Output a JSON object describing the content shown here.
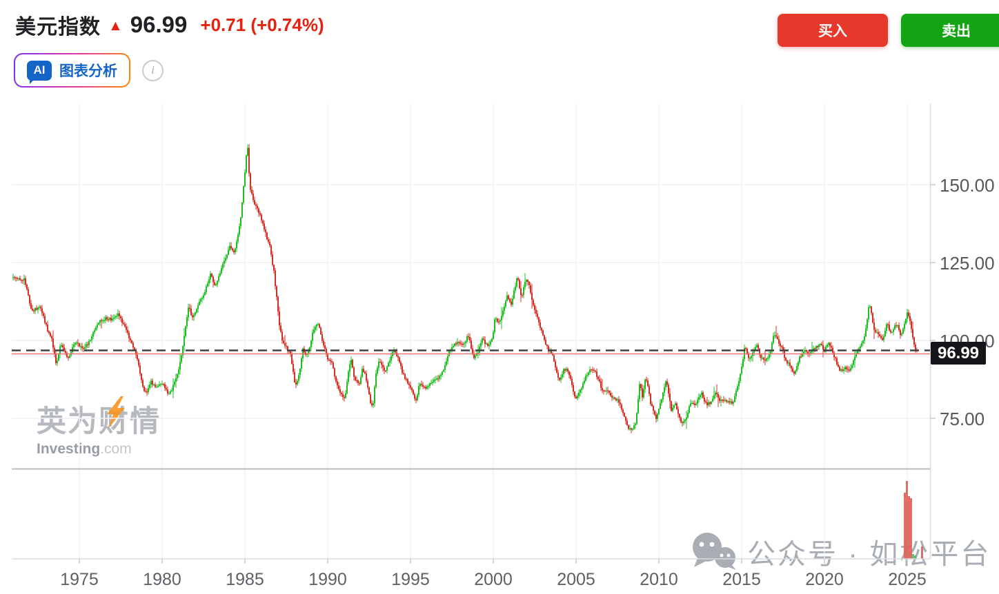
{
  "header": {
    "title": "美元指数",
    "arrow": "▲",
    "last_price": "96.99",
    "change_text": "+0.71 (+0.74%)",
    "ai_button": {
      "badge": "AI",
      "label": "图表分析"
    },
    "info_icon": "i",
    "buy_label": "买入",
    "sell_label": "卖出"
  },
  "price_badge": "96.99",
  "watermarks": {
    "investing_cn": "英为财情",
    "investing_en": "Investing",
    "investing_domain": ".com",
    "channel_text": "公众号 · 如松平台"
  },
  "colors": {
    "candle_up": "#21bb24",
    "candle_down": "#ce3226",
    "volume_down": "#de5e55",
    "volume_up": "#57b56b",
    "grid": "#f0f1f3",
    "separator": "#b7bbc1",
    "axis_line": "#d8dbde",
    "tick": "#c6cacd",
    "dashed_line": "#3c4045",
    "price_line": "#f5746d",
    "accent_red": "#e4220f",
    "buy_red": "#e6392b",
    "sell_green": "#13a413",
    "ai_blue": "#1565c8",
    "badge_bg": "#141619"
  },
  "chart_data": {
    "type": "candlestick",
    "title": "美元指数",
    "current_price": 96.99,
    "grid": true,
    "legend": false,
    "x_axis": {
      "tick_years": [
        1975,
        1980,
        1985,
        1990,
        1995,
        2000,
        2005,
        2010,
        2015,
        2020,
        2025
      ],
      "range": [
        1971,
        2026.3
      ]
    },
    "y_axis": {
      "tick_values": [
        150,
        125,
        100,
        75
      ],
      "tick_labels": [
        "150.00",
        "125.00",
        "100.00",
        "75.00"
      ],
      "visible_range": [
        65,
        170
      ]
    },
    "series_monthly_anchors": [
      [
        1971.0,
        120.2
      ],
      [
        1971.7,
        119.6
      ],
      [
        1972.1,
        109.6
      ],
      [
        1972.65,
        110.5
      ],
      [
        1973.1,
        103.0
      ],
      [
        1973.35,
        100.0
      ],
      [
        1973.6,
        92.5
      ],
      [
        1973.9,
        99.0
      ],
      [
        1974.3,
        94.3
      ],
      [
        1974.8,
        99.8
      ],
      [
        1975.2,
        97.2
      ],
      [
        1975.6,
        99.5
      ],
      [
        1976.1,
        105.5
      ],
      [
        1976.6,
        107.2
      ],
      [
        1977.0,
        106.5
      ],
      [
        1977.35,
        108.3
      ],
      [
        1977.8,
        103.5
      ],
      [
        1978.3,
        97.5
      ],
      [
        1978.6,
        91.5
      ],
      [
        1978.85,
        84.3
      ],
      [
        1979.05,
        83.3
      ],
      [
        1979.3,
        87.0
      ],
      [
        1979.6,
        84.8
      ],
      [
        1980.0,
        86.3
      ],
      [
        1980.35,
        82.7
      ],
      [
        1980.6,
        84.5
      ],
      [
        1980.95,
        89.5
      ],
      [
        1981.2,
        96.0
      ],
      [
        1981.6,
        111.0
      ],
      [
        1981.85,
        106.8
      ],
      [
        1982.1,
        110.8
      ],
      [
        1982.45,
        114.0
      ],
      [
        1982.7,
        117.5
      ],
      [
        1982.95,
        122.0
      ],
      [
        1983.2,
        116.8
      ],
      [
        1983.55,
        122.5
      ],
      [
        1983.9,
        127.5
      ],
      [
        1984.1,
        130.5
      ],
      [
        1984.35,
        128.0
      ],
      [
        1984.6,
        134.0
      ],
      [
        1984.78,
        141.0
      ],
      [
        1984.92,
        150.0
      ],
      [
        1985.05,
        157.0
      ],
      [
        1985.15,
        163.5
      ],
      [
        1985.3,
        149.0
      ],
      [
        1985.55,
        144.5
      ],
      [
        1985.9,
        140.5
      ],
      [
        1986.2,
        135.0
      ],
      [
        1986.5,
        130.0
      ],
      [
        1986.75,
        122.0
      ],
      [
        1986.95,
        112.0
      ],
      [
        1987.1,
        104.0
      ],
      [
        1987.3,
        99.0
      ],
      [
        1987.55,
        97.5
      ],
      [
        1987.75,
        95.5
      ],
      [
        1987.9,
        90.0
      ],
      [
        1988.05,
        85.5
      ],
      [
        1988.3,
        89.5
      ],
      [
        1988.5,
        97.5
      ],
      [
        1988.7,
        95.0
      ],
      [
        1988.9,
        97.0
      ],
      [
        1989.1,
        103.0
      ],
      [
        1989.45,
        105.5
      ],
      [
        1989.7,
        99.5
      ],
      [
        1990.0,
        94.0
      ],
      [
        1990.25,
        92.5
      ],
      [
        1990.55,
        86.0
      ],
      [
        1990.8,
        83.0
      ],
      [
        1991.05,
        81.0
      ],
      [
        1991.2,
        88.0
      ],
      [
        1991.4,
        94.5
      ],
      [
        1991.6,
        88.0
      ],
      [
        1991.9,
        85.5
      ],
      [
        1992.1,
        91.0
      ],
      [
        1992.3,
        88.5
      ],
      [
        1992.6,
        79.0
      ],
      [
        1992.75,
        80.0
      ],
      [
        1992.95,
        91.0
      ],
      [
        1993.15,
        93.5
      ],
      [
        1993.45,
        89.5
      ],
      [
        1993.7,
        93.0
      ],
      [
        1993.95,
        97.0
      ],
      [
        1994.2,
        95.0
      ],
      [
        1994.5,
        90.0
      ],
      [
        1994.85,
        86.0
      ],
      [
        1995.05,
        85.0
      ],
      [
        1995.3,
        80.5
      ],
      [
        1995.55,
        86.0
      ],
      [
        1995.9,
        84.8
      ],
      [
        1996.2,
        86.5
      ],
      [
        1996.6,
        87.5
      ],
      [
        1996.95,
        90.0
      ],
      [
        1997.3,
        96.0
      ],
      [
        1997.6,
        98.5
      ],
      [
        1997.9,
        99.5
      ],
      [
        1998.2,
        99.0
      ],
      [
        1998.5,
        101.5
      ],
      [
        1998.8,
        94.5
      ],
      [
        1999.05,
        96.0
      ],
      [
        1999.35,
        100.5
      ],
      [
        1999.65,
        98.0
      ],
      [
        1999.95,
        101.0
      ],
      [
        2000.1,
        107.0
      ],
      [
        2000.35,
        105.5
      ],
      [
        2000.6,
        110.0
      ],
      [
        2000.85,
        115.0
      ],
      [
        2001.05,
        111.0
      ],
      [
        2001.45,
        120.5
      ],
      [
        2001.7,
        113.5
      ],
      [
        2001.95,
        119.5
      ],
      [
        2002.15,
        118.5
      ],
      [
        2002.45,
        110.0
      ],
      [
        2002.75,
        106.0
      ],
      [
        2003.0,
        101.5
      ],
      [
        2003.3,
        97.0
      ],
      [
        2003.55,
        95.5
      ],
      [
        2003.95,
        86.8
      ],
      [
        2004.25,
        90.5
      ],
      [
        2004.45,
        91.2
      ],
      [
        2004.7,
        87.5
      ],
      [
        2004.95,
        80.8
      ],
      [
        2005.25,
        84.0
      ],
      [
        2005.6,
        88.5
      ],
      [
        2005.9,
        91.0
      ],
      [
        2006.2,
        89.5
      ],
      [
        2006.55,
        84.5
      ],
      [
        2006.9,
        83.5
      ],
      [
        2007.25,
        81.5
      ],
      [
        2007.55,
        80.5
      ],
      [
        2007.9,
        75.8
      ],
      [
        2008.15,
        72.0
      ],
      [
        2008.33,
        71.3
      ],
      [
        2008.6,
        73.5
      ],
      [
        2008.85,
        86.5
      ],
      [
        2009.0,
        81.5
      ],
      [
        2009.2,
        89.0
      ],
      [
        2009.5,
        80.0
      ],
      [
        2009.85,
        75.0
      ],
      [
        2010.1,
        80.0
      ],
      [
        2010.45,
        87.5
      ],
      [
        2010.75,
        77.8
      ],
      [
        2011.0,
        79.5
      ],
      [
        2011.35,
        73.0
      ],
      [
        2011.6,
        74.5
      ],
      [
        2011.95,
        80.5
      ],
      [
        2012.2,
        79.0
      ],
      [
        2012.55,
        83.5
      ],
      [
        2012.85,
        79.5
      ],
      [
        2013.1,
        80.0
      ],
      [
        2013.4,
        83.3
      ],
      [
        2013.7,
        80.5
      ],
      [
        2014.05,
        80.5
      ],
      [
        2014.5,
        79.9
      ],
      [
        2014.95,
        89.5
      ],
      [
        2015.2,
        98.3
      ],
      [
        2015.4,
        94.0
      ],
      [
        2015.7,
        96.3
      ],
      [
        2015.95,
        98.5
      ],
      [
        2016.15,
        94.5
      ],
      [
        2016.4,
        93.8
      ],
      [
        2016.7,
        95.5
      ],
      [
        2016.95,
        102.3
      ],
      [
        2017.15,
        100.5
      ],
      [
        2017.5,
        96.5
      ],
      [
        2017.7,
        92.5
      ],
      [
        2017.95,
        92.3
      ],
      [
        2018.15,
        89.0
      ],
      [
        2018.5,
        94.5
      ],
      [
        2018.85,
        96.8
      ],
      [
        2019.1,
        96.0
      ],
      [
        2019.45,
        97.8
      ],
      [
        2019.75,
        98.8
      ],
      [
        2020.0,
        96.5
      ],
      [
        2020.2,
        99.5
      ],
      [
        2020.45,
        97.0
      ],
      [
        2020.7,
        93.3
      ],
      [
        2020.95,
        90.0
      ],
      [
        2021.2,
        91.3
      ],
      [
        2021.45,
        90.0
      ],
      [
        2021.7,
        92.8
      ],
      [
        2021.95,
        95.8
      ],
      [
        2022.2,
        98.5
      ],
      [
        2022.45,
        102.0
      ],
      [
        2022.72,
        112.3
      ],
      [
        2022.85,
        108.0
      ],
      [
        2023.0,
        103.5
      ],
      [
        2023.2,
        102.0
      ],
      [
        2023.4,
        101.3
      ],
      [
        2023.55,
        100.0
      ],
      [
        2023.8,
        106.3
      ],
      [
        2023.95,
        101.8
      ],
      [
        2024.2,
        104.3
      ],
      [
        2024.45,
        104.8
      ],
      [
        2024.6,
        100.9
      ],
      [
        2024.8,
        104.3
      ],
      [
        2024.98,
        108.8
      ],
      [
        2025.1,
        108.0
      ],
      [
        2025.25,
        104.0
      ],
      [
        2025.4,
        99.3
      ],
      [
        2025.5,
        97.2
      ],
      [
        2025.583,
        96.99
      ]
    ],
    "volume_bars": [
      [
        1310,
        96,
        "d"
      ],
      [
        1313,
        113,
        "d"
      ],
      [
        1316,
        91,
        "d"
      ],
      [
        1319,
        88,
        "d"
      ],
      [
        1322,
        7,
        "u"
      ],
      [
        1325,
        5,
        "u"
      ],
      [
        1335,
        18,
        "d"
      ]
    ]
  }
}
